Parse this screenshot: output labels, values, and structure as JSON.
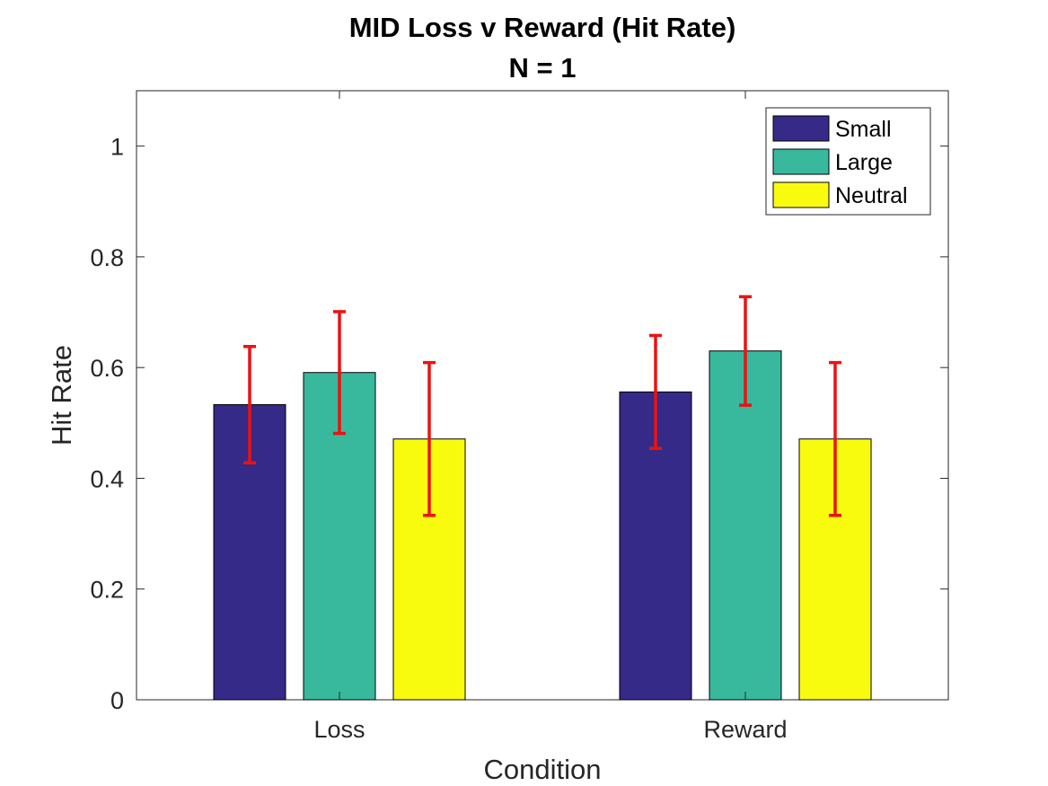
{
  "chart_data": {
    "type": "bar",
    "title": "MID Loss v Reward (Hit Rate)",
    "subtitle": "N = 1",
    "xlabel": "Condition",
    "ylabel": "Hit Rate",
    "categories": [
      "Loss",
      "Reward"
    ],
    "ylim": [
      0,
      1.1
    ],
    "yticks": [
      0,
      0.2,
      0.4,
      0.6,
      0.8,
      1
    ],
    "ytick_labels": [
      "0",
      "0.2",
      "0.4",
      "0.6",
      "0.8",
      "1"
    ],
    "legend_position": "top-right",
    "error_bar_color": "#ee1111",
    "series": [
      {
        "name": "Small",
        "color": "#352a87",
        "values": [
          0.533,
          0.556
        ],
        "error": [
          0.105,
          0.102
        ]
      },
      {
        "name": "Large",
        "color": "#38b99e",
        "values": [
          0.591,
          0.63
        ],
        "error": [
          0.11,
          0.098
        ]
      },
      {
        "name": "Neutral",
        "color": "#f9fb0e",
        "values": [
          0.471,
          0.471
        ],
        "error": [
          0.138,
          0.138
        ]
      }
    ]
  }
}
